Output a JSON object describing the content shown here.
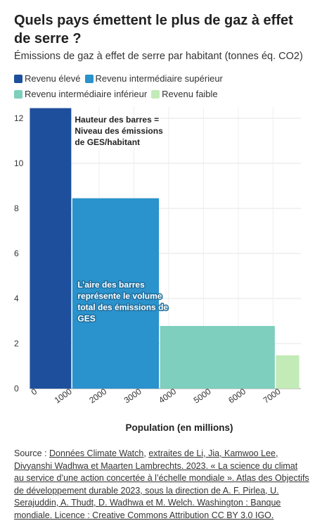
{
  "title": "Quels pays émettent le plus de gaz à effet de serre ?",
  "subtitle": "Émissions de gaz à effet de serre par habitant (tonnes éq. CO2)",
  "source": {
    "prefix": "Source : ",
    "link1": "Données Climate Watch",
    "sep1": ", ",
    "link2": "extraites de Li, Jia, Kamwoo Lee, Divyanshi Wadhwa et Maarten Lambrechts. 2023. « La science du climat au service d’une action concertée à l’échelle mondiale ». Atlas des Objectifs de développement durable 2023, sous la direction de A. F. Pirlea, U. Serajuddin, A. Thudt, D. Wadhwa et M. Welch. Washington : Banque mondiale. Licence : Creative Commons Attribution CC BY 3.0 IGO."
  },
  "chart_data": {
    "type": "bar",
    "variable_width": true,
    "xlabel": "Population (en millions)",
    "ylabel": "",
    "xlim": [
      0,
      7800
    ],
    "ylim": [
      0,
      12.5
    ],
    "xticks": [
      0,
      1000,
      2000,
      3000,
      4000,
      5000,
      6000,
      7000
    ],
    "yticks": [
      0,
      2,
      4,
      6,
      8,
      10,
      12
    ],
    "grid": true,
    "legend_position": "top-left",
    "series": [
      {
        "name": "Revenu élevé",
        "population_start": 0,
        "population": 1220,
        "value": 12.45,
        "color": "#1d4f9c"
      },
      {
        "name": "Revenu intermédiaire supérieur",
        "population_start": 1220,
        "population": 2520,
        "value": 8.45,
        "color": "#2a92cc"
      },
      {
        "name": "Revenu intermédiaire inférieur",
        "population_start": 3740,
        "population": 3330,
        "value": 2.78,
        "color": "#7ecfbd"
      },
      {
        "name": "Revenu faible",
        "population_start": 7070,
        "population": 700,
        "value": 1.48,
        "color": "#c2ebb7"
      }
    ],
    "annotations": [
      {
        "id": "height",
        "text": [
          "Hauteur des barres =",
          "Niveau des émissions",
          "de GES/habitant"
        ]
      },
      {
        "id": "area",
        "text": [
          "L’aire des barres",
          "représente le volume",
          "total des émissions de",
          "GES"
        ]
      }
    ]
  }
}
